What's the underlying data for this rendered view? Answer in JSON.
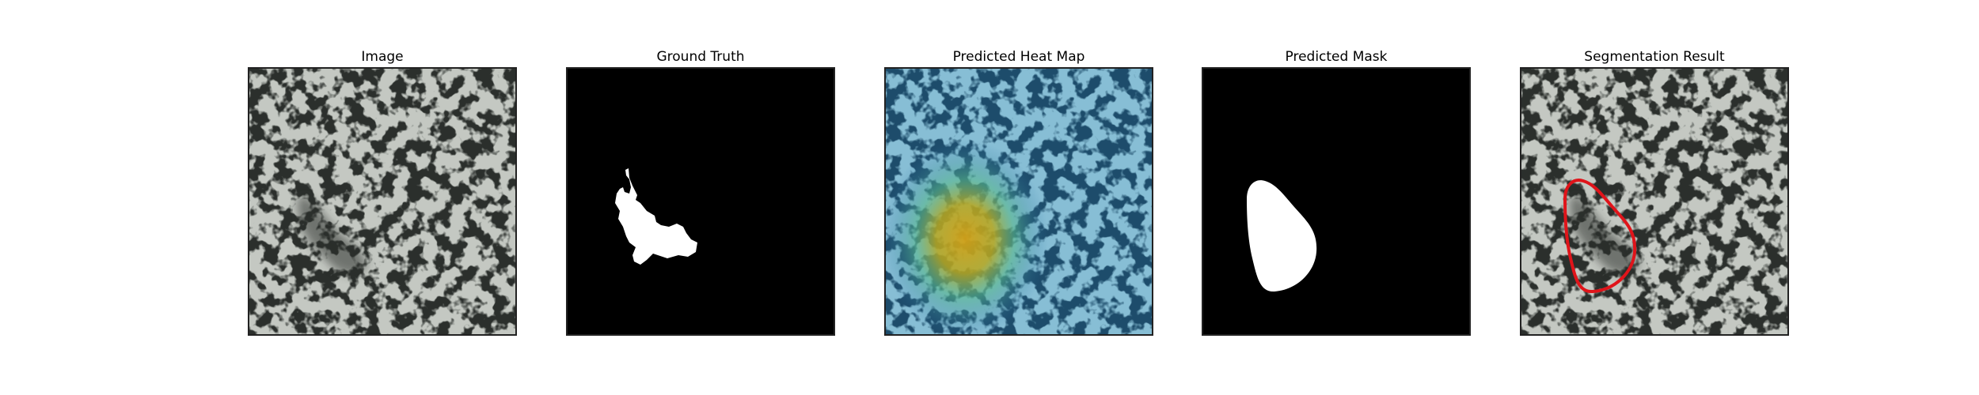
{
  "figure": {
    "panels": [
      {
        "title": "Image"
      },
      {
        "title": "Ground Truth"
      },
      {
        "title": "Predicted Heat Map"
      },
      {
        "title": "Predicted Mask"
      },
      {
        "title": "Segmentation Result"
      }
    ]
  },
  "colors": {
    "texture_base": "#8e948c",
    "texture_spots": "#2b2f2c",
    "mask_foreground": "#ffffff",
    "mask_background": "#000000",
    "heatmap_cold": "#2a6fa8",
    "heatmap_hot": "#d4a116",
    "contour": "#e0141a"
  }
}
